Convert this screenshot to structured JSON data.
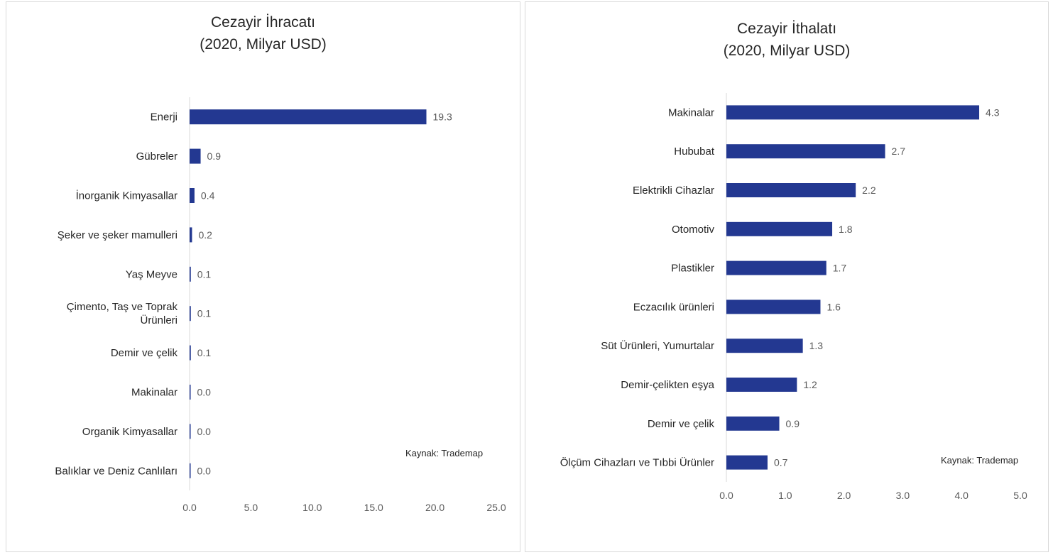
{
  "charts": [
    {
      "id": "left",
      "title_line1": "Cezayir İhracatı",
      "title_line2": "(2020, Milyar USD)",
      "source": "Kaynak: Trademap",
      "chart_data": {
        "type": "bar",
        "orientation": "horizontal",
        "title": "Cezayir İhracatı (2020, Milyar USD)",
        "categories": [
          "Enerji",
          "Gübreler",
          "İnorganik Kimyasallar",
          "Şeker ve şeker mamulleri",
          "Yaş Meyve",
          [
            "Çimento, Taş ve Toprak",
            "Ürünleri"
          ],
          "Demir ve çelik",
          "Makinalar",
          "Organik Kimyasallar",
          "Balıklar ve Deniz Canlıları"
        ],
        "values": [
          19.3,
          0.9,
          0.4,
          0.2,
          0.1,
          0.1,
          0.1,
          0.0,
          0.0,
          0.0
        ],
        "value_labels": [
          "19.3",
          "0.9",
          "0.4",
          "0.2",
          "0.1",
          "0.1",
          "0.1",
          "0.0",
          "0.0",
          "0.0"
        ],
        "xlim": [
          0,
          25
        ],
        "xticks": [
          "0.0",
          "5.0",
          "10.0",
          "15.0",
          "20.0",
          "25.0"
        ],
        "grid": false,
        "legend": "none",
        "bar_color": "#233891"
      }
    },
    {
      "id": "right",
      "title_line1": "Cezayir İthalatı",
      "title_line2": "(2020, Milyar USD)",
      "source": "Kaynak: Trademap",
      "chart_data": {
        "type": "bar",
        "orientation": "horizontal",
        "title": "Cezayir İthalatı (2020, Milyar USD)",
        "categories": [
          "Makinalar",
          "Hububat",
          "Elektrikli Cihazlar",
          "Otomotiv",
          "Plastikler",
          "Eczacılık ürünleri",
          "Süt Ürünleri, Yumurtalar",
          "Demir-çelikten eşya",
          "Demir ve çelik",
          "Ölçüm Cihazları ve Tıbbi Ürünler"
        ],
        "values": [
          4.3,
          2.7,
          2.2,
          1.8,
          1.7,
          1.6,
          1.3,
          1.2,
          0.9,
          0.7
        ],
        "value_labels": [
          "4.3",
          "2.7",
          "2.2",
          "1.8",
          "1.7",
          "1.6",
          "1.3",
          "1.2",
          "0.9",
          "0.7"
        ],
        "xlim": [
          0,
          5
        ],
        "xticks": [
          "0.0",
          "1.0",
          "2.0",
          "3.0",
          "4.0",
          "5.0"
        ],
        "grid": false,
        "legend": "none",
        "bar_color": "#233891"
      }
    }
  ]
}
